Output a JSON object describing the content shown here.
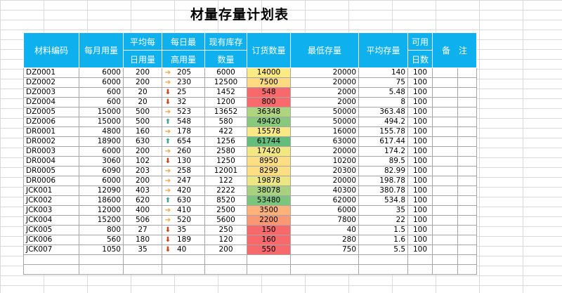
{
  "title": "材量存量计划表",
  "colors": {
    "header_bg": "#0fb0ee",
    "order_scale_low": "#f8696b",
    "order_scale_mid": "#ffeb84",
    "order_scale_high": "#63be7b"
  },
  "headers": {
    "code": "材料编码",
    "monthly": "每月用量",
    "avg_daily_1": "平均每",
    "avg_daily_2": "日用量",
    "peak_daily_1": "每日最",
    "peak_daily_2": "高用量",
    "stock_1": "现有库存",
    "stock_2": "数量",
    "order": "订货数量",
    "min_stock": "最低存量",
    "avg_stock": "平均存量",
    "days_1": "可用",
    "days_2": "日数",
    "remark": "备　注"
  },
  "rows": [
    {
      "code": "DZ0001",
      "monthly": "6000",
      "avg": "200",
      "trend": "side",
      "trend_icon": "sideways-arrow-icon",
      "peak": "205",
      "stock": "6000",
      "order": "14000",
      "order_ratio": 0.51,
      "min": "20000",
      "avgstock": "140",
      "days": "100"
    },
    {
      "code": "DZ0002",
      "monthly": "6000",
      "avg": "200",
      "trend": "side",
      "trend_icon": "sideways-arrow-icon",
      "peak": "230",
      "stock": "12500",
      "order": "7500",
      "order_ratio": 0.44,
      "min": "20000",
      "avgstock": "75",
      "days": "100"
    },
    {
      "code": "DZ0003",
      "monthly": "600",
      "avg": "20",
      "trend": "down",
      "trend_icon": "down-arrow-icon",
      "peak": "25",
      "stock": "1452",
      "order": "548",
      "order_ratio": 0.0,
      "min": "2000",
      "avgstock": "5.48",
      "days": "100"
    },
    {
      "code": "DZ0004",
      "monthly": "600",
      "avg": "20",
      "trend": "down",
      "trend_icon": "down-arrow-icon",
      "peak": "32",
      "stock": "1200",
      "order": "800",
      "order_ratio": 0.005,
      "min": "2000",
      "avgstock": "8",
      "days": "100"
    },
    {
      "code": "DZ0005",
      "monthly": "15000",
      "avg": "500",
      "trend": "side",
      "trend_icon": "sideways-arrow-icon",
      "peak": "523",
      "stock": "13652",
      "order": "36348",
      "order_ratio": 0.76,
      "min": "50000",
      "avgstock": "363.48",
      "days": "100"
    },
    {
      "code": "DZ0006",
      "monthly": "15000",
      "avg": "500",
      "trend": "up",
      "trend_icon": "up-arrow-icon",
      "peak": "548",
      "stock": "580",
      "order": "49420",
      "order_ratio": 0.88,
      "min": "50000",
      "avgstock": "494.2",
      "days": "100"
    },
    {
      "code": "DR0001",
      "monthly": "4800",
      "avg": "160",
      "trend": "side",
      "trend_icon": "sideways-arrow-icon",
      "peak": "178",
      "stock": "422",
      "order": "15578",
      "order_ratio": 0.52,
      "min": "16000",
      "avgstock": "155.78",
      "days": "100"
    },
    {
      "code": "DR0002",
      "monthly": "18900",
      "avg": "630",
      "trend": "up",
      "trend_icon": "up-arrow-icon",
      "peak": "654",
      "stock": "1256",
      "order": "61744",
      "order_ratio": 1.0,
      "min": "63000",
      "avgstock": "617.44",
      "days": "100"
    },
    {
      "code": "DR0003",
      "monthly": "6000",
      "avg": "200",
      "trend": "side",
      "trend_icon": "sideways-arrow-icon",
      "peak": "260",
      "stock": "2580",
      "order": "17420",
      "order_ratio": 0.54,
      "min": "20000",
      "avgstock": "174.2",
      "days": "100"
    },
    {
      "code": "DR0004",
      "monthly": "3060",
      "avg": "102",
      "trend": "down",
      "trend_icon": "down-arrow-icon",
      "peak": "130",
      "stock": "1250",
      "order": "8950",
      "order_ratio": 0.45,
      "min": "10200",
      "avgstock": "89.5",
      "days": "100"
    },
    {
      "code": "DR0005",
      "monthly": "6090",
      "avg": "203",
      "trend": "side",
      "trend_icon": "sideways-arrow-icon",
      "peak": "258",
      "stock": "12001",
      "order": "8299",
      "order_ratio": 0.45,
      "min": "20300",
      "avgstock": "82.99",
      "days": "100"
    },
    {
      "code": "DR0006",
      "monthly": "6000",
      "avg": "200",
      "trend": "side",
      "trend_icon": "sideways-arrow-icon",
      "peak": "247",
      "stock": "122",
      "order": "19878",
      "order_ratio": 0.56,
      "min": "20000",
      "avgstock": "198.78",
      "days": "100"
    },
    {
      "code": "JCK001",
      "monthly": "12090",
      "avg": "403",
      "trend": "side",
      "trend_icon": "sideways-arrow-icon",
      "peak": "420",
      "stock": "2222",
      "order": "38078",
      "order_ratio": 0.78,
      "min": "40300",
      "avgstock": "380.78",
      "days": "100"
    },
    {
      "code": "JCK002",
      "monthly": "18600",
      "avg": "620",
      "trend": "up",
      "trend_icon": "up-arrow-icon",
      "peak": "630",
      "stock": "8520",
      "order": "53480",
      "order_ratio": 0.92,
      "min": "62000",
      "avgstock": "534.8",
      "days": "100"
    },
    {
      "code": "JCK003",
      "monthly": "12000",
      "avg": "400",
      "trend": "side",
      "trend_icon": "sideways-arrow-icon",
      "peak": "410",
      "stock": "2500",
      "order": "3500",
      "order_ratio": 0.28,
      "min": "6000",
      "avgstock": "35",
      "days": "100"
    },
    {
      "code": "JCK004",
      "monthly": "15200",
      "avg": "506",
      "trend": "side",
      "trend_icon": "sideways-arrow-icon",
      "peak": "520",
      "stock": "5600",
      "order": "2200",
      "order_ratio": 0.18,
      "min": "7800",
      "avgstock": "22",
      "days": "100"
    },
    {
      "code": "JCK005",
      "monthly": "800",
      "avg": "27",
      "trend": "down",
      "trend_icon": "down-arrow-icon",
      "peak": "35",
      "stock": "250",
      "order": "150",
      "order_ratio": 0.0,
      "min": "40",
      "avgstock": "1.5",
      "days": "100"
    },
    {
      "code": "JCK006",
      "monthly": "560",
      "avg": "180",
      "trend": "down",
      "trend_icon": "down-arrow-icon",
      "peak": "189",
      "stock": "120",
      "order": "160",
      "order_ratio": 0.0,
      "min": "280",
      "avgstock": "1.6",
      "days": "100"
    },
    {
      "code": "JCK007",
      "monthly": "1050",
      "avg": "35",
      "trend": "down",
      "trend_icon": "down-arrow-icon",
      "peak": "40",
      "stock": "200",
      "order": "550",
      "order_ratio": 0.0,
      "min": "750",
      "avgstock": "5.5",
      "days": "100"
    }
  ],
  "empty_rows": 2
}
